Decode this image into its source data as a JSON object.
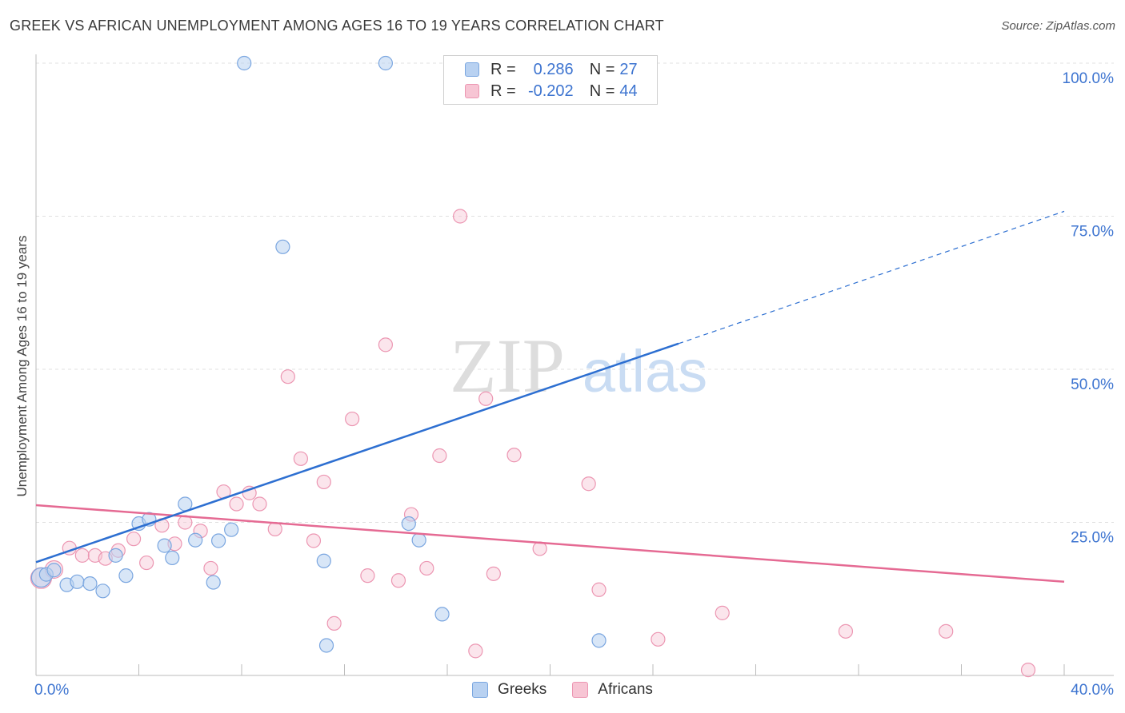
{
  "title": "GREEK VS AFRICAN UNEMPLOYMENT AMONG AGES 16 TO 19 YEARS CORRELATION CHART",
  "source": "Source: ZipAtlas.com",
  "watermark": {
    "zip": "ZIP",
    "atlas": "atlas"
  },
  "legend_top": {
    "rows": [
      {
        "r_label": "R =",
        "r_value": "0.286",
        "n_label": "N =",
        "n_value": "27"
      },
      {
        "r_label": "R =",
        "r_value": "-0.202",
        "n_label": "N =",
        "n_value": "44"
      }
    ]
  },
  "bottom_legend": {
    "greeks": "Greeks",
    "africans": "Africans"
  },
  "colors": {
    "greeks_fill": "#b8d1f1",
    "greeks_stroke": "#7aa6e0",
    "greeks_line": "#2d6fd1",
    "africans_fill": "#f7c5d4",
    "africans_stroke": "#ec96b2",
    "africans_line": "#e56a93",
    "axis_label": "#3d74d0",
    "grid": "#e0e0e0"
  },
  "chart_data": {
    "type": "scatter",
    "title": "GREEK VS AFRICAN UNEMPLOYMENT AMONG AGES 16 TO 19 YEARS CORRELATION CHART",
    "xlabel": "",
    "ylabel": "Unemployment Among Ages 16 to 19 years",
    "xlim": [
      0,
      40
    ],
    "ylim": [
      0,
      100
    ],
    "x_tick_labels": [
      "0.0%",
      "40.0%"
    ],
    "y_tick_labels": [
      {
        "value": 25,
        "label": "25.0%"
      },
      {
        "value": 50,
        "label": "50.0%"
      },
      {
        "value": 75,
        "label": "75.0%"
      },
      {
        "value": 100,
        "label": "100.0%"
      }
    ],
    "series": [
      {
        "name": "Greeks",
        "R": 0.286,
        "N": 27,
        "points": [
          [
            0.2,
            16.0
          ],
          [
            0.4,
            16.5
          ],
          [
            0.7,
            17.2
          ],
          [
            1.2,
            14.8
          ],
          [
            1.6,
            15.3
          ],
          [
            2.1,
            15.0
          ],
          [
            2.6,
            13.8
          ],
          [
            3.1,
            19.6
          ],
          [
            3.5,
            16.3
          ],
          [
            4.0,
            24.8
          ],
          [
            4.4,
            25.5
          ],
          [
            5.0,
            21.2
          ],
          [
            5.3,
            19.2
          ],
          [
            5.8,
            28.0
          ],
          [
            6.2,
            22.1
          ],
          [
            6.9,
            15.2
          ],
          [
            7.1,
            22.0
          ],
          [
            7.6,
            23.8
          ],
          [
            8.1,
            100
          ],
          [
            9.6,
            70.0
          ],
          [
            11.2,
            18.7
          ],
          [
            11.3,
            4.9
          ],
          [
            13.6,
            100
          ],
          [
            14.5,
            24.8
          ],
          [
            14.9,
            22.1
          ],
          [
            15.8,
            10.0
          ],
          [
            21.9,
            5.7
          ]
        ],
        "trend": {
          "x0": 0,
          "y0": 18.5,
          "x1": 25.0,
          "y1": 54.2,
          "dashed_to_x": 40,
          "dashed_to_y": 75.8
        }
      },
      {
        "name": "Africans",
        "R": -0.202,
        "N": 44,
        "points": [
          [
            0.2,
            15.9
          ],
          [
            0.7,
            17.3
          ],
          [
            1.3,
            20.8
          ],
          [
            1.8,
            19.6
          ],
          [
            2.3,
            19.6
          ],
          [
            2.7,
            19.1
          ],
          [
            3.2,
            20.4
          ],
          [
            3.8,
            22.3
          ],
          [
            4.3,
            18.4
          ],
          [
            4.9,
            24.5
          ],
          [
            5.4,
            21.5
          ],
          [
            5.8,
            25.0
          ],
          [
            6.4,
            23.6
          ],
          [
            6.8,
            17.5
          ],
          [
            7.3,
            30.0
          ],
          [
            7.8,
            28.0
          ],
          [
            8.3,
            29.8
          ],
          [
            8.7,
            28.0
          ],
          [
            9.3,
            23.9
          ],
          [
            9.8,
            48.8
          ],
          [
            10.3,
            35.4
          ],
          [
            10.8,
            22.0
          ],
          [
            11.2,
            31.6
          ],
          [
            11.6,
            8.5
          ],
          [
            12.3,
            41.9
          ],
          [
            12.9,
            16.3
          ],
          [
            13.6,
            54.0
          ],
          [
            14.1,
            15.5
          ],
          [
            14.6,
            26.3
          ],
          [
            15.2,
            17.5
          ],
          [
            15.7,
            35.9
          ],
          [
            16.5,
            75.0
          ],
          [
            17.1,
            4.0
          ],
          [
            17.5,
            45.2
          ],
          [
            17.8,
            16.6
          ],
          [
            18.6,
            36.0
          ],
          [
            19.6,
            20.7
          ],
          [
            21.5,
            31.3
          ],
          [
            21.9,
            14.0
          ],
          [
            24.2,
            5.9
          ],
          [
            26.7,
            10.2
          ],
          [
            31.5,
            7.2
          ],
          [
            35.4,
            7.2
          ],
          [
            38.6,
            0.9
          ]
        ],
        "trend": {
          "x0": 0,
          "y0": 27.8,
          "x1": 40,
          "y1": 15.3
        }
      }
    ]
  }
}
